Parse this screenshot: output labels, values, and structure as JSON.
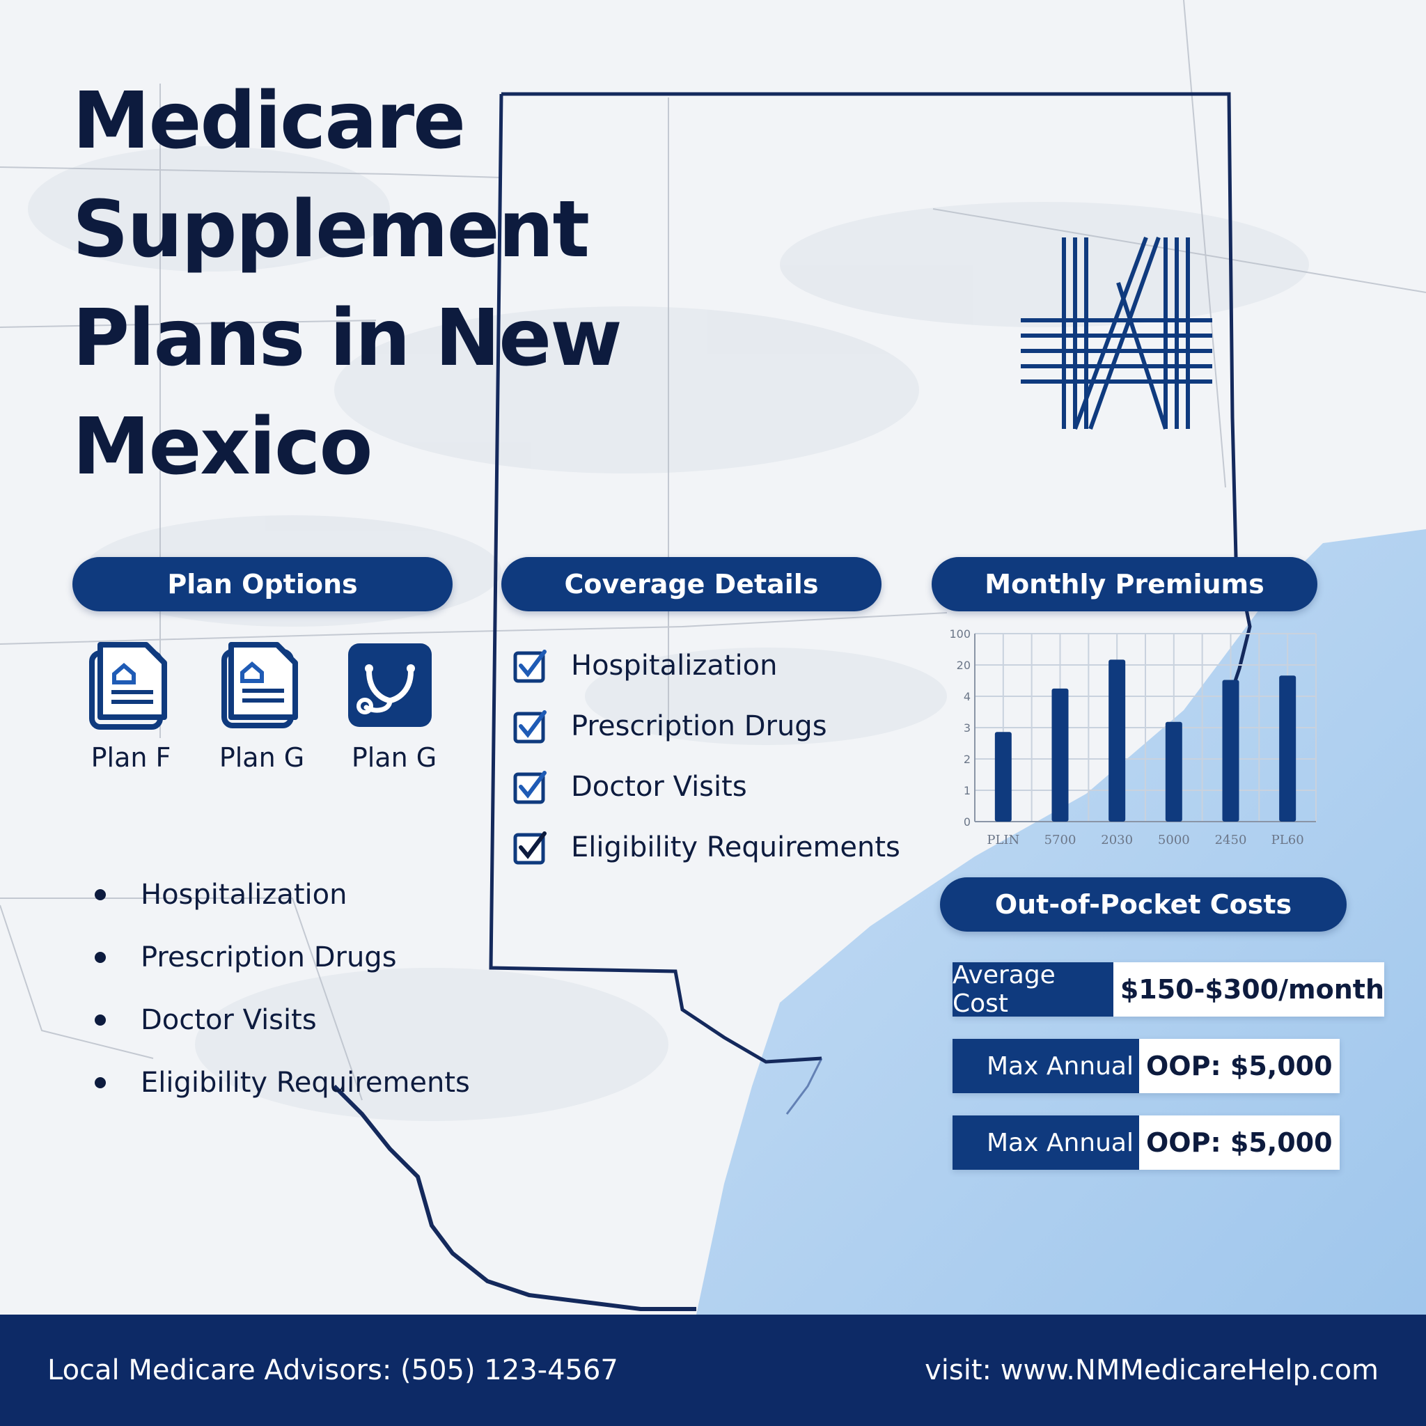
{
  "title": "Medicare Supplement Plans in New Mexico",
  "plan_options": {
    "header": "Plan Options",
    "plans": [
      {
        "label": "Plan F",
        "icon": "document-icon"
      },
      {
        "label": "Plan G",
        "icon": "document-icon"
      },
      {
        "label": "Plan G",
        "icon": "stethoscope-icon"
      }
    ],
    "bullets": [
      "Hospitalization",
      "Prescription Drugs",
      "Doctor Visits",
      "Eligibility Requirements"
    ]
  },
  "coverage_details": {
    "header": "Coverage Details",
    "items": [
      "Hospitalization",
      "Prescription Drugs",
      "Doctor Visits",
      "Eligibility Requirements"
    ]
  },
  "monthly_premiums": {
    "header": "Monthly Premiums",
    "chart_data": {
      "type": "bar",
      "categories": [
        "PLIN",
        "5700",
        "2030",
        "5000",
        "2450",
        "PL60"
      ],
      "values": [
        62,
        92,
        112,
        69,
        98,
        101
      ],
      "ylim": [
        0,
        130
      ],
      "yticks": [
        "0",
        "1",
        "2",
        "3",
        "4",
        "20",
        "100"
      ]
    }
  },
  "out_of_pocket": {
    "header": "Out-of-Pocket Costs",
    "rows": [
      {
        "label": "Average Cost",
        "value": "$150-$300/month"
      },
      {
        "label": "Max Annual",
        "value": "OOP: $5,000"
      },
      {
        "label": "Max Annual",
        "value": "OOP: $5,000"
      }
    ]
  },
  "footer": {
    "contact": "Local Medicare Advisors: (505) 123-4567",
    "website": "visit: www.NMMedicareHelp.com"
  },
  "colors": {
    "navy": "#0f3a7e",
    "dark_text": "#0d1b3e",
    "water": "#a9cdee",
    "footer": "#0d2a66"
  }
}
